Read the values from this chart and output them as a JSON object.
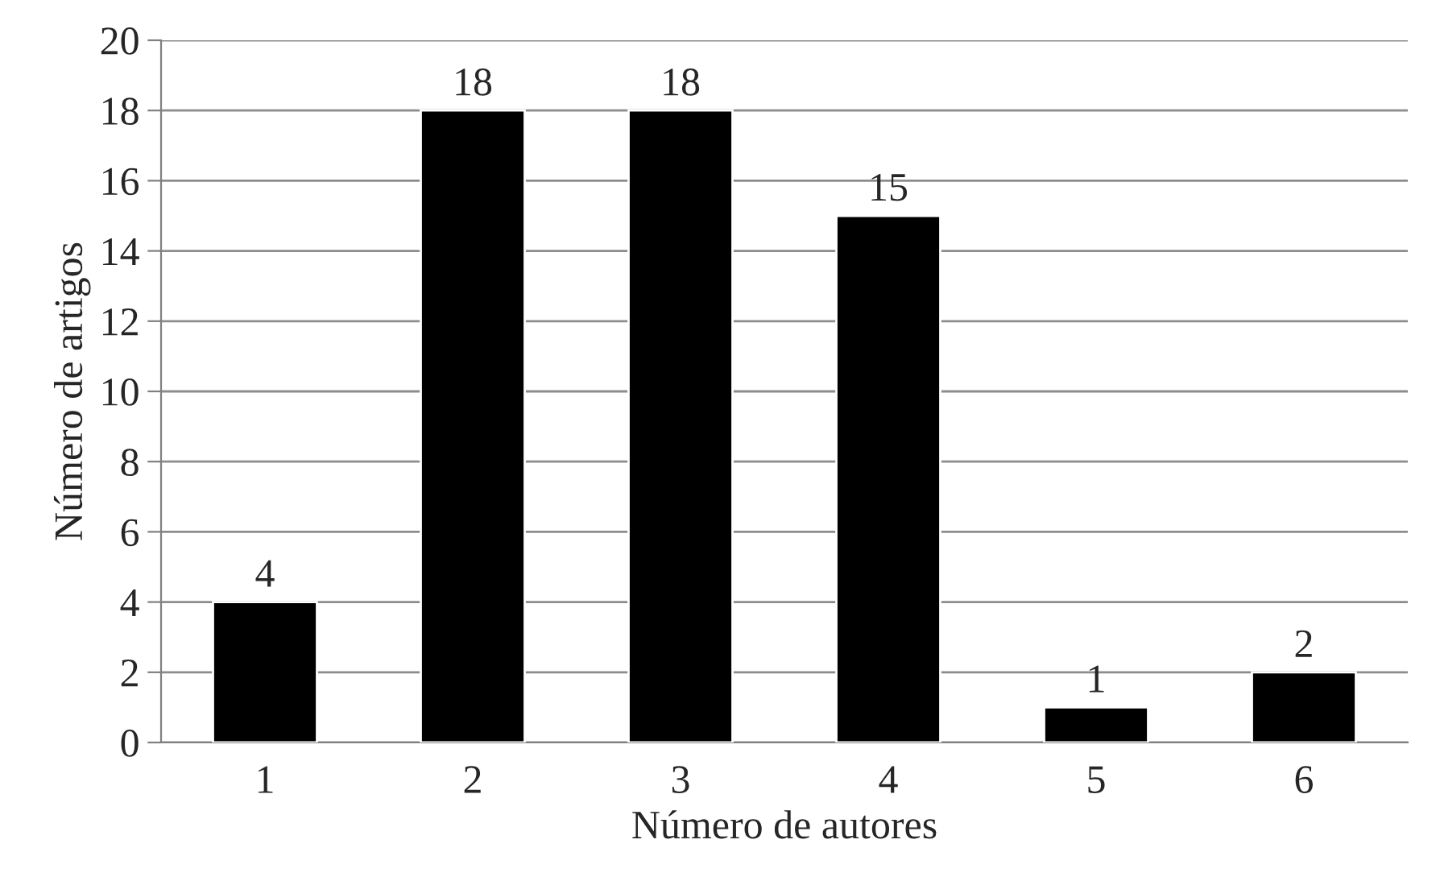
{
  "chart_data": {
    "type": "bar",
    "xlabel": "Número de autores",
    "ylabel": "Número de artigos",
    "categories": [
      "1",
      "2",
      "3",
      "4",
      "5",
      "6"
    ],
    "values": [
      4,
      18,
      18,
      15,
      1,
      2
    ],
    "color": "#000000",
    "ylim": [
      0,
      20
    ],
    "yticks": [
      0,
      2,
      4,
      6,
      8,
      10,
      12,
      14,
      16,
      18,
      20
    ],
    "grid": "y",
    "data_labels": true,
    "legend": false
  }
}
